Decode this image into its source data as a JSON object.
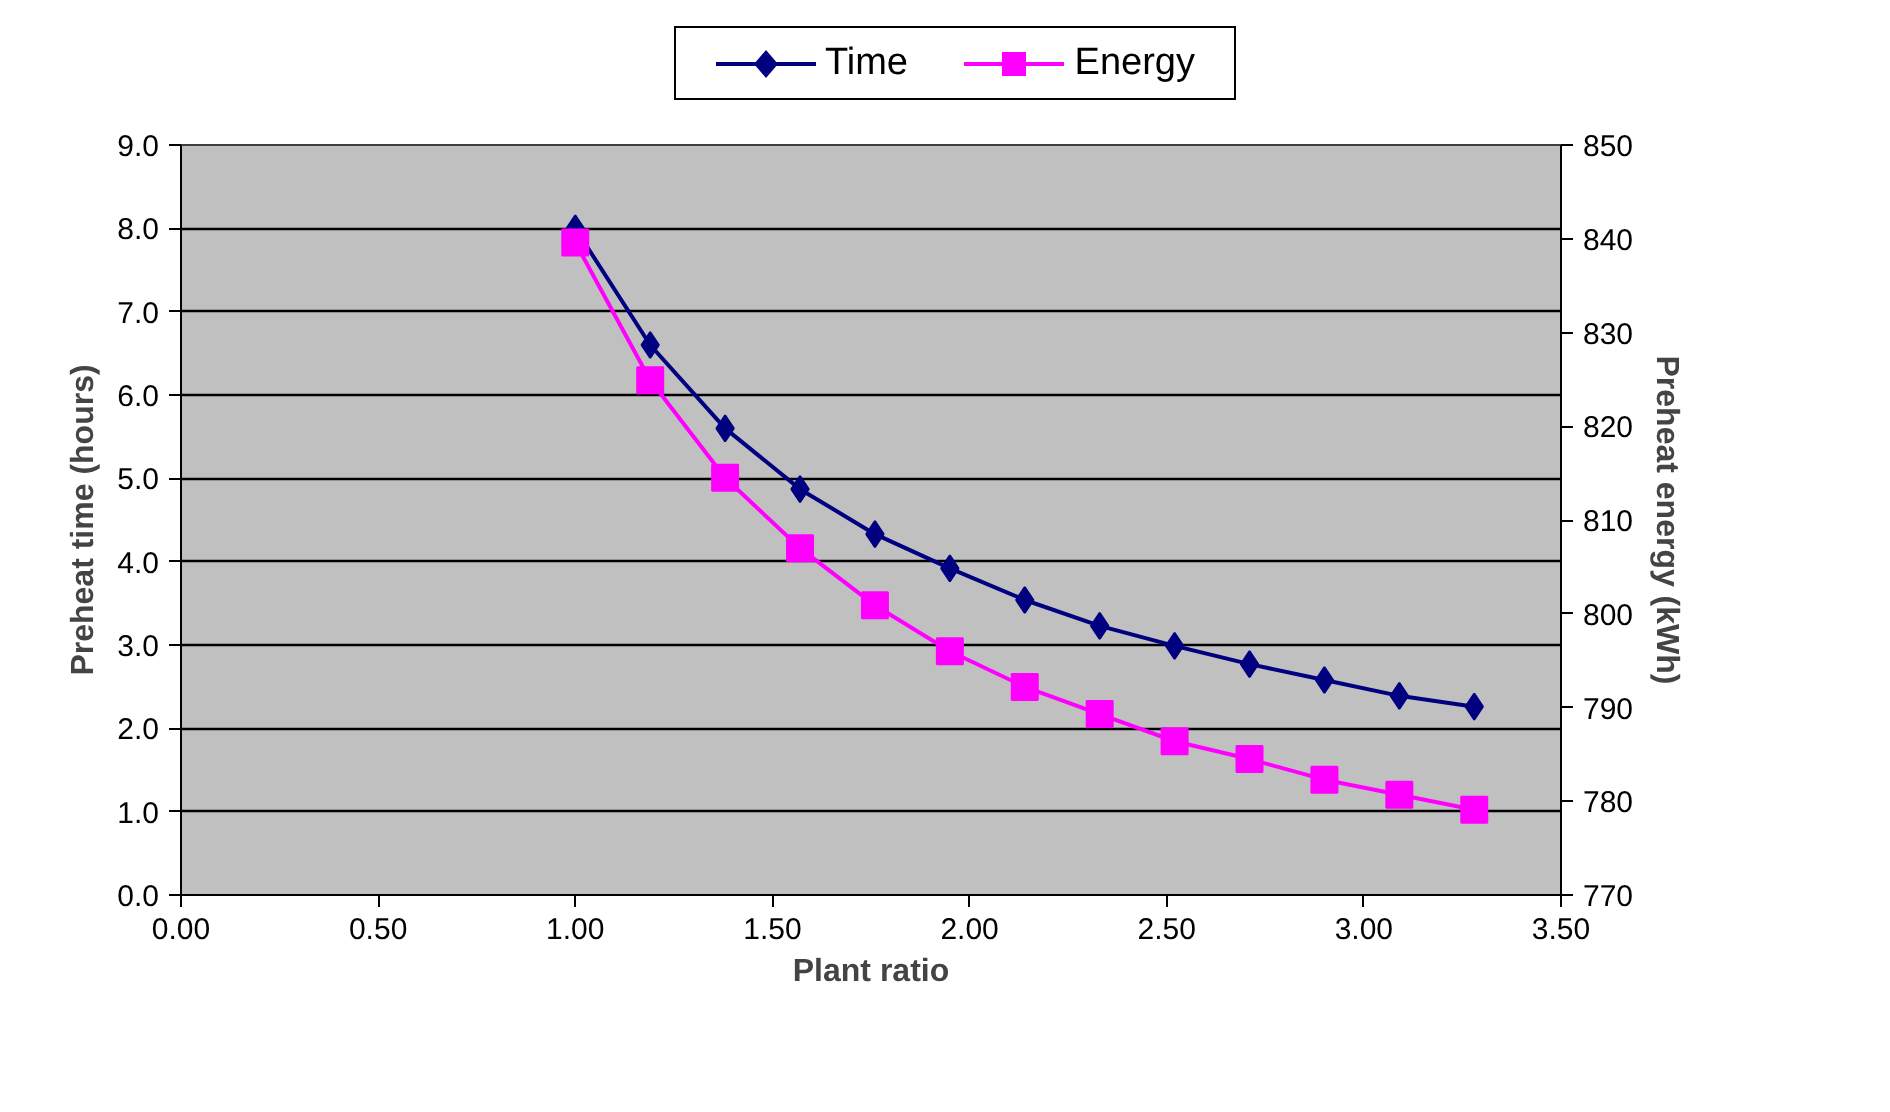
{
  "chart_data": {
    "type": "line",
    "xlabel": "Plant ratio",
    "ylabel": "Preheat time (hours)",
    "y2label": "Preheat energy (kWh)",
    "x": [
      1.0,
      1.19,
      1.38,
      1.57,
      1.76,
      1.95,
      2.14,
      2.33,
      2.52,
      2.71,
      2.9,
      3.09,
      3.28
    ],
    "series": [
      {
        "name": "Time",
        "color": "#000080",
        "marker": "diamond",
        "values": [
          8.0,
          6.6,
          5.6,
          4.87,
          4.33,
          3.92,
          3.54,
          3.23,
          2.99,
          2.77,
          2.58,
          2.39,
          2.26
        ]
      },
      {
        "name": "Energy",
        "color": "#ff00ff",
        "marker": "square",
        "axis": "y2",
        "values": [
          839.6,
          824.9,
          814.5,
          807.0,
          800.9,
          796.0,
          792.2,
          789.3,
          786.4,
          784.5,
          782.3,
          780.7,
          779.1
        ]
      }
    ],
    "xlim": [
      0,
      3.5
    ],
    "xticks": [
      {
        "value": 0,
        "label": "0.00"
      },
      {
        "value": 0.5,
        "label": "0.50"
      },
      {
        "value": 1,
        "label": "1.00"
      },
      {
        "value": 1.5,
        "label": "1.50"
      },
      {
        "value": 2,
        "label": "2.00"
      },
      {
        "value": 2.5,
        "label": "2.50"
      },
      {
        "value": 3,
        "label": "3.00"
      },
      {
        "value": 3.5,
        "label": "3.50"
      }
    ],
    "ylim": [
      0,
      9
    ],
    "yticks": [
      {
        "value": 0,
        "label": "0.0"
      },
      {
        "value": 1,
        "label": "1.0"
      },
      {
        "value": 2,
        "label": "2.0"
      },
      {
        "value": 3,
        "label": "3.0"
      },
      {
        "value": 4,
        "label": "4.0"
      },
      {
        "value": 5,
        "label": "5.0"
      },
      {
        "value": 6,
        "label": "6.0"
      },
      {
        "value": 7,
        "label": "7.0"
      },
      {
        "value": 8,
        "label": "8.0"
      },
      {
        "value": 9,
        "label": "9.0"
      }
    ],
    "y2lim": [
      770,
      850
    ],
    "y2ticks": [
      770,
      780,
      790,
      800,
      810,
      820,
      830,
      840,
      850
    ],
    "grid": "y",
    "legend": "top",
    "line_style": "solid"
  }
}
